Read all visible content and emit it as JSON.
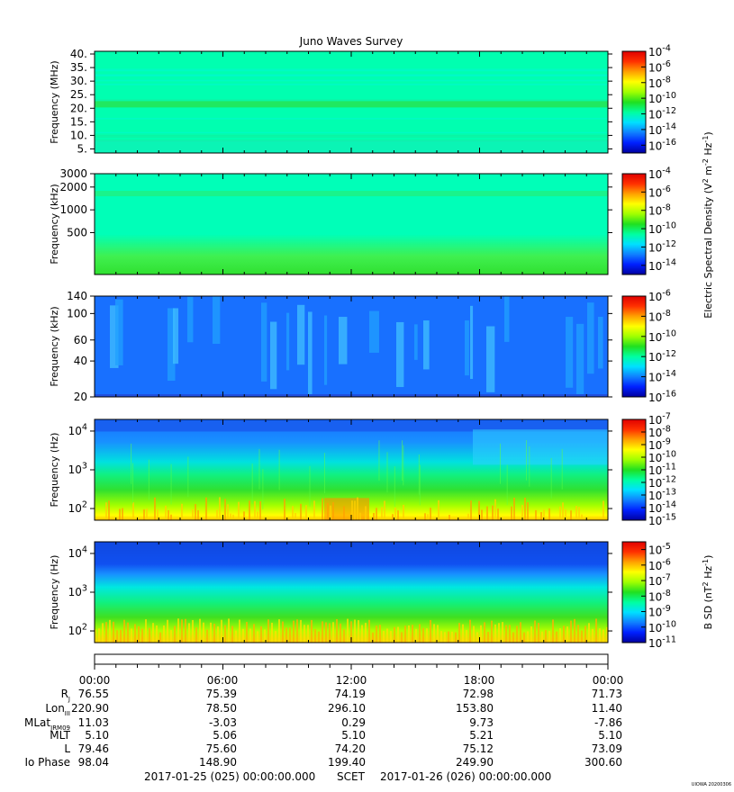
{
  "chart_data": {
    "type": "heatmap",
    "title": "Juno Waves Survey",
    "time_ticks": [
      "00:00",
      "06:00",
      "12:00",
      "18:00",
      "00:00"
    ],
    "panels": [
      {
        "id": "p1",
        "ylabel": "Frequency (MHz)",
        "scale": "linear",
        "ylim": [
          3.5,
          41
        ],
        "yticks": [
          {
            "v": 40,
            "label": "40."
          },
          {
            "v": 35,
            "label": "35."
          },
          {
            "v": 30,
            "label": "30."
          },
          {
            "v": 25,
            "label": "25."
          },
          {
            "v": 20,
            "label": "20."
          },
          {
            "v": 15,
            "label": "15."
          },
          {
            "v": 10,
            "label": "10."
          },
          {
            "v": 5,
            "label": "5."
          }
        ],
        "colorbar": {
          "labels": [
            "10^-4",
            "10^-6",
            "10^-8",
            "10^-10",
            "10^-12",
            "10^-14",
            "10^-16"
          ],
          "scale_top": -4,
          "scale_bottom": -17
        },
        "style": "hfr_high"
      },
      {
        "id": "p2",
        "ylabel": "Frequency (kHz)",
        "scale": "log",
        "ylim": [
          140,
          3000
        ],
        "yticks": [
          {
            "v": 3000,
            "label": "3000"
          },
          {
            "v": 2000,
            "label": "2000"
          },
          {
            "v": 1000,
            "label": "1000"
          },
          {
            "v": 500,
            "label": "500"
          }
        ],
        "colorbar": {
          "labels": [
            "10^-4",
            "10^-6",
            "10^-8",
            "10^-10",
            "10^-12",
            "10^-14"
          ],
          "scale_top": -4,
          "scale_bottom": -15
        },
        "style": "hfr_low"
      },
      {
        "id": "p3",
        "ylabel": "Frequency (kHz)",
        "scale": "log",
        "ylim": [
          20,
          140
        ],
        "yticks": [
          {
            "v": 140,
            "label": "140"
          },
          {
            "v": 100,
            "label": "100"
          },
          {
            "v": 60,
            "label": "60"
          },
          {
            "v": 40,
            "label": "40"
          },
          {
            "v": 20,
            "label": "20"
          }
        ],
        "colorbar": {
          "labels": [
            "10^-6",
            "10^-8",
            "10^-10",
            "10^-12",
            "10^-14",
            "10^-16"
          ],
          "scale_top": -6,
          "scale_bottom": -16
        },
        "style": "lfr"
      },
      {
        "id": "p4",
        "ylabel": "Frequency (Hz)",
        "scale": "log",
        "ylim": [
          50,
          20000
        ],
        "yticks": [
          {
            "v": 10000,
            "label": "10^4"
          },
          {
            "v": 1000,
            "label": "10^3"
          },
          {
            "v": 100,
            "label": "10^2"
          }
        ],
        "colorbar": {
          "labels": [
            "10^-7",
            "10^-8",
            "10^-9",
            "10^-10",
            "10^-11",
            "10^-12",
            "10^-13",
            "10^-14",
            "10^-15"
          ],
          "scale_top": -7,
          "scale_bottom": -15
        },
        "style": "lf_e"
      },
      {
        "id": "p5",
        "ylabel": "Frequency (Hz)",
        "scale": "log",
        "ylim": [
          50,
          20000
        ],
        "yticks": [
          {
            "v": 10000,
            "label": "10^4"
          },
          {
            "v": 1000,
            "label": "10^3"
          },
          {
            "v": 100,
            "label": "10^2"
          }
        ],
        "colorbar": {
          "labels": [
            "10^-5",
            "10^-6",
            "10^-7",
            "10^-8",
            "10^-9",
            "10^-10",
            "10^-11"
          ],
          "scale_top": -4.5,
          "scale_bottom": -11
        },
        "style": "lf_b"
      }
    ],
    "colorbar_titles": {
      "electric": "Electric Spectral Density (V^2 m^-2 Hz^-1)",
      "magnetic": "B SD (nT^2 Hz^-1)"
    },
    "ephemeris": {
      "labels": [
        "R_J",
        "Lon_III",
        "MLat_JRM09",
        "MLT",
        "L",
        "Io Phase"
      ],
      "rows": [
        [
          "76.55",
          "75.39",
          "74.19",
          "72.98",
          "71.73"
        ],
        [
          "220.90",
          "78.50",
          "296.10",
          "153.80",
          "11.40"
        ],
        [
          "11.03",
          "-3.03",
          "0.29",
          "9.73",
          "-7.86"
        ],
        [
          "5.10",
          "5.06",
          "5.10",
          "5.21",
          "5.10"
        ],
        [
          "79.46",
          "75.60",
          "74.20",
          "75.12",
          "73.09"
        ],
        [
          "98.04",
          "148.90",
          "199.40",
          "249.90",
          "300.60"
        ]
      ]
    },
    "footer": {
      "start": "2017-01-25 (025) 00:00:00.000",
      "scet": "SCET",
      "end": "2017-01-26 (026) 00:00:00.000",
      "credit": "UIOWA 20200306"
    },
    "colormap": [
      "#0000a0",
      "#0020ff",
      "#1080ff",
      "#00e0ff",
      "#00ffa0",
      "#20e020",
      "#a0ff00",
      "#ffff00",
      "#ffa000",
      "#ff3000",
      "#e00000"
    ]
  }
}
